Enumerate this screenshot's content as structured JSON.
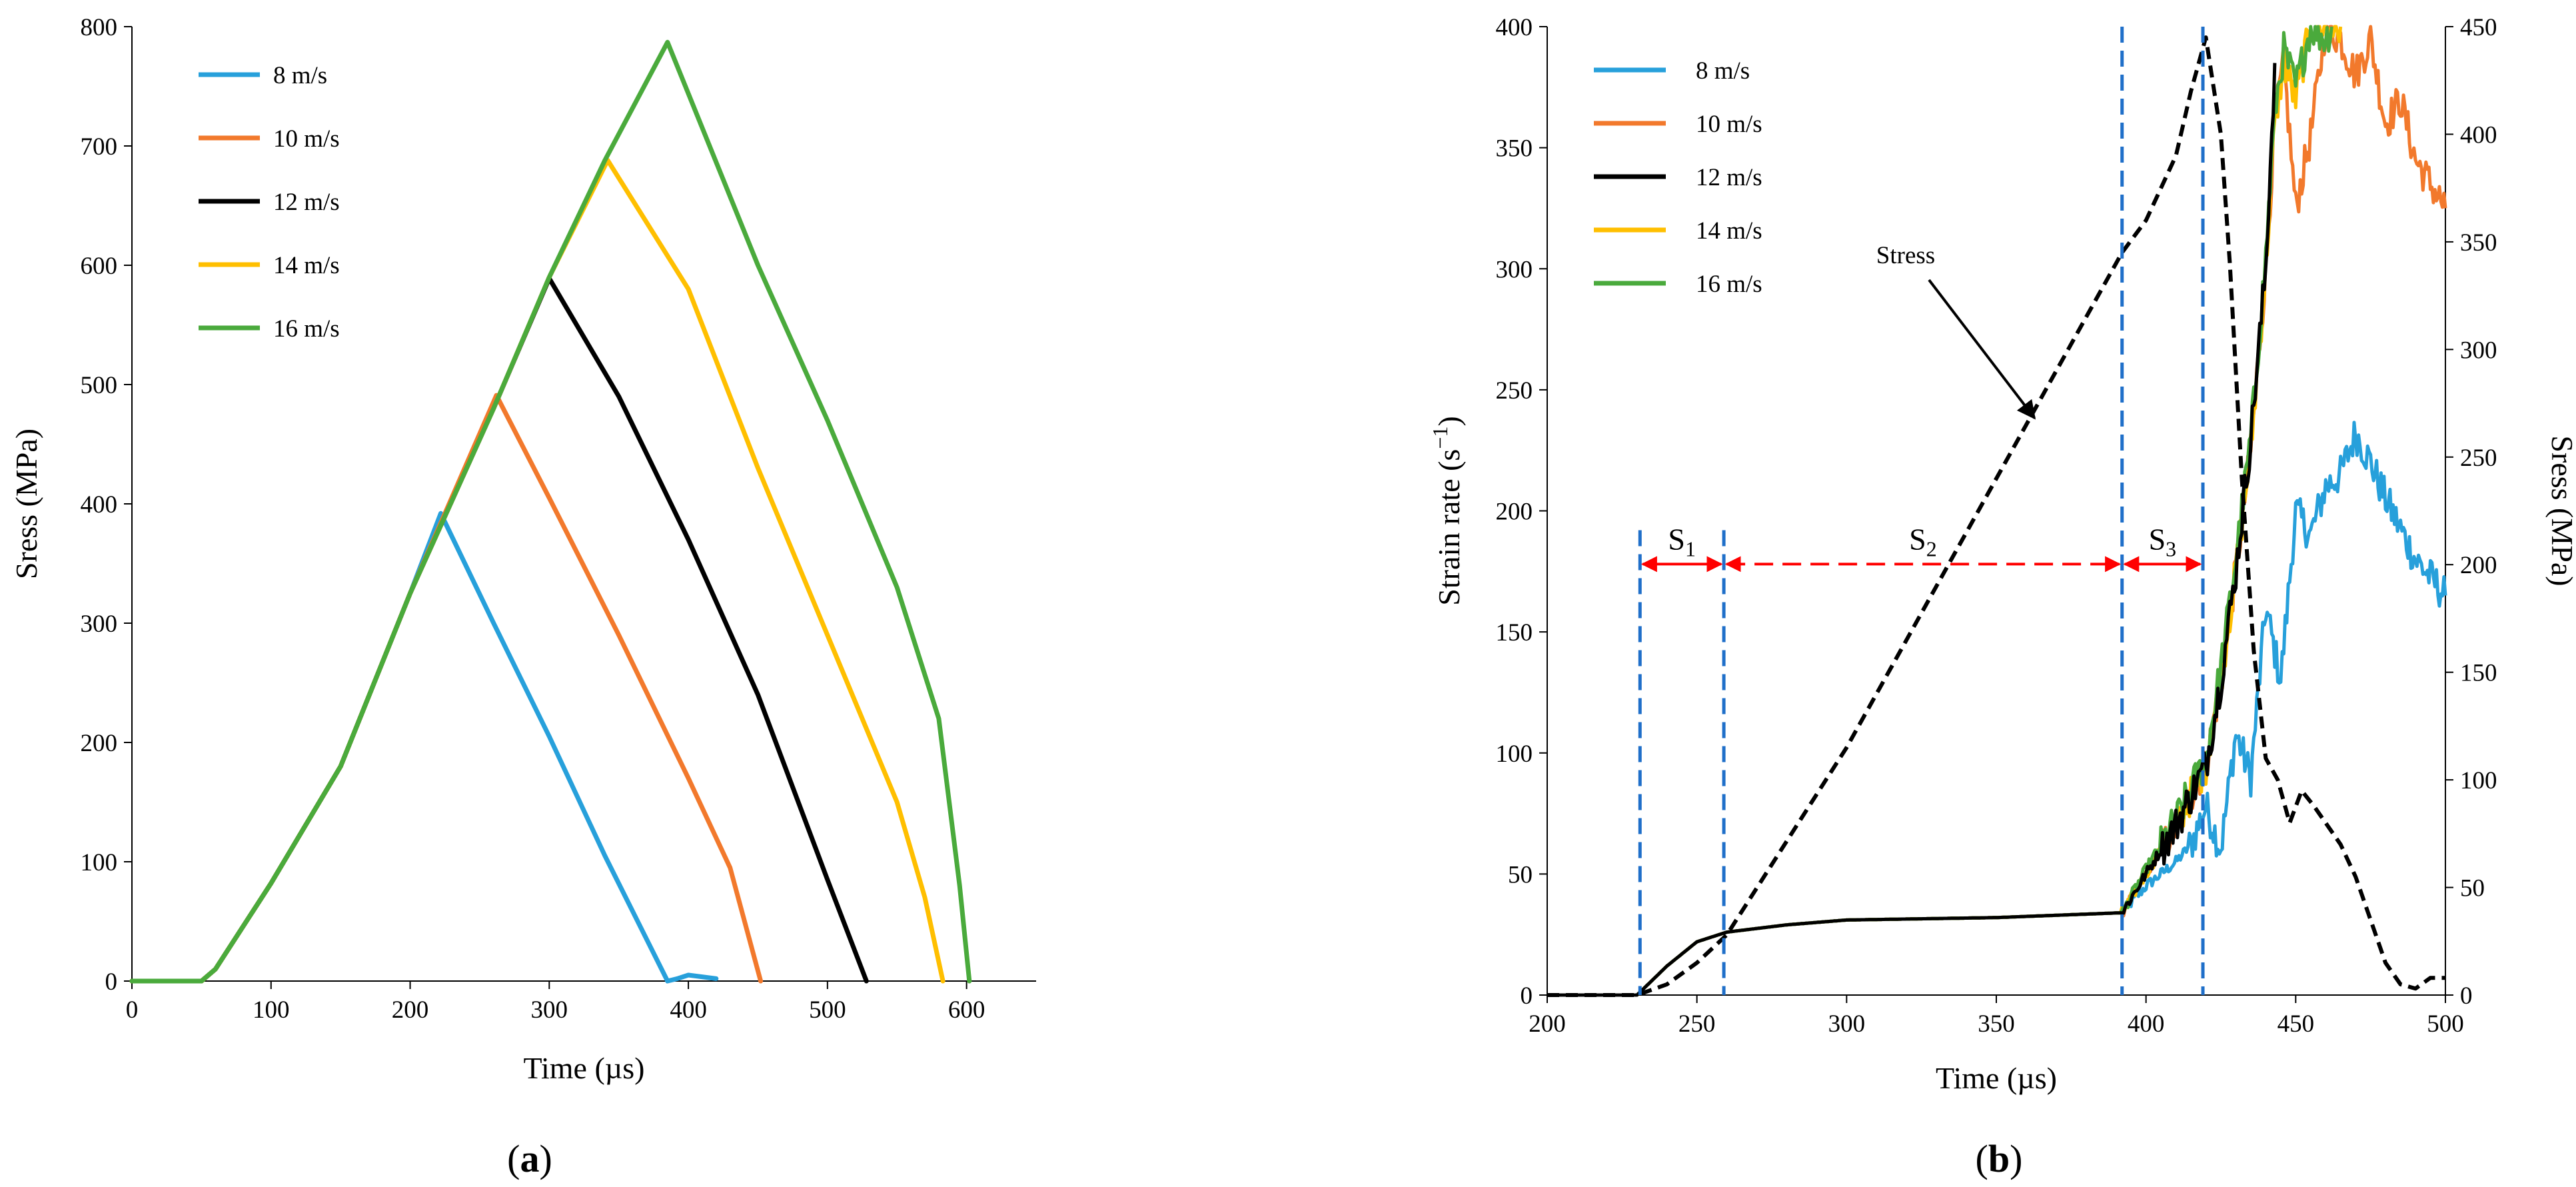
{
  "chart_data": [
    {
      "id": "a",
      "type": "line",
      "panel_label": "a",
      "xlabel": "Time (µs)",
      "ylabel": "Sress (MPa)",
      "xlim": [
        0,
        650
      ],
      "ylim": [
        0,
        800
      ],
      "xticks": [
        "0",
        "100",
        "200",
        "300",
        "400",
        "500",
        "600"
      ],
      "yticks": [
        "0",
        "100",
        "200",
        "300",
        "400",
        "500",
        "600",
        "700",
        "800"
      ],
      "legend_position": "top-left",
      "series": [
        {
          "name": "8 m/s",
          "color": "#27a0db",
          "x": [
            0,
            50,
            60,
            100,
            150,
            200,
            222,
            260,
            300,
            340,
            385,
            392,
            400,
            420
          ],
          "y": [
            0,
            0,
            10,
            82,
            180,
            325,
            392,
            300,
            205,
            105,
            0,
            2,
            5,
            2
          ]
        },
        {
          "name": "10 m/s",
          "color": "#f2792c",
          "x": [
            0,
            50,
            60,
            100,
            150,
            200,
            262,
            300,
            350,
            400,
            430,
            452
          ],
          "y": [
            0,
            0,
            10,
            82,
            180,
            325,
            491,
            405,
            290,
            170,
            95,
            0
          ]
        },
        {
          "name": "12 m/s",
          "color": "#000000",
          "x": [
            0,
            50,
            60,
            100,
            150,
            200,
            260,
            300,
            350,
            400,
            450,
            500,
            528
          ],
          "y": [
            0,
            0,
            10,
            82,
            180,
            325,
            480,
            589,
            490,
            370,
            240,
            85,
            0
          ]
        },
        {
          "name": "14 m/s",
          "color": "#ffbf00",
          "x": [
            0,
            50,
            60,
            100,
            150,
            200,
            260,
            300,
            342,
            400,
            450,
            500,
            550,
            570,
            583
          ],
          "y": [
            0,
            0,
            10,
            82,
            180,
            325,
            480,
            590,
            688,
            580,
            430,
            290,
            150,
            70,
            0
          ]
        },
        {
          "name": "16 m/s",
          "color": "#4aaa3c",
          "x": [
            0,
            50,
            60,
            100,
            150,
            200,
            260,
            300,
            340,
            385,
            450,
            500,
            550,
            580,
            595,
            602
          ],
          "y": [
            0,
            0,
            10,
            82,
            180,
            325,
            480,
            590,
            688,
            787,
            600,
            470,
            330,
            220,
            80,
            0
          ]
        }
      ]
    },
    {
      "id": "b",
      "type": "line",
      "panel_label": "b",
      "xlabel": "Time (µs)",
      "ylabel": "Strain rate (s",
      "ylabel_sup": "−1",
      "ylabel_close": ")",
      "y2label": "Sress (MPa)",
      "xlim": [
        200,
        500
      ],
      "ylim": [
        0,
        400
      ],
      "y2lim": [
        0,
        450
      ],
      "xticks": [
        "200",
        "250",
        "300",
        "350",
        "400",
        "450",
        "500"
      ],
      "yticks": [
        "0",
        "50",
        "100",
        "150",
        "200",
        "250",
        "300",
        "350",
        "400"
      ],
      "y2ticks": [
        "0",
        "50",
        "100",
        "150",
        "200",
        "250",
        "300",
        "350",
        "400",
        "450"
      ],
      "legend_position": "top-left",
      "series": [
        {
          "name": "8 m/s",
          "color": "#27a0db",
          "x": [
            200,
            230,
            240,
            250,
            260,
            280,
            300,
            350,
            392,
            400,
            410,
            415,
            420,
            425,
            430,
            435,
            440,
            445,
            450,
            455,
            460,
            465,
            470,
            475,
            480,
            490,
            500
          ],
          "y": [
            0,
            0,
            12,
            22,
            26,
            29,
            31,
            32,
            34,
            45,
            55,
            62,
            78,
            60,
            108,
            90,
            160,
            130,
            200,
            190,
            210,
            215,
            232,
            220,
            205,
            180,
            165
          ]
        },
        {
          "name": "10 m/s",
          "color": "#f2792c",
          "x": [
            200,
            230,
            240,
            250,
            260,
            280,
            300,
            350,
            392,
            400,
            410,
            420,
            425,
            430,
            435,
            440,
            443,
            446,
            450,
            455,
            460,
            465,
            470,
            475,
            480,
            485,
            490,
            500
          ],
          "y": [
            0,
            0,
            12,
            22,
            26,
            29,
            31,
            32,
            34,
            50,
            70,
            95,
            130,
            175,
            225,
            300,
            360,
            385,
            325,
            355,
            400,
            395,
            380,
            395,
            360,
            370,
            345,
            325
          ]
        },
        {
          "name": "12 m/s",
          "color": "#000000",
          "x": [
            200,
            230,
            240,
            250,
            260,
            280,
            300,
            350,
            392,
            400,
            410,
            420,
            425,
            430,
            435,
            440,
            443
          ],
          "y": [
            0,
            0,
            12,
            22,
            26,
            29,
            31,
            32,
            34,
            50,
            70,
            95,
            130,
            175,
            230,
            300,
            385
          ]
        },
        {
          "name": "14 m/s",
          "color": "#ffbf00",
          "x": [
            200,
            230,
            240,
            250,
            260,
            280,
            300,
            350,
            392,
            400,
            410,
            420,
            425,
            430,
            435,
            440,
            443,
            446,
            450,
            455,
            460,
            465
          ],
          "y": [
            0,
            0,
            12,
            22,
            26,
            29,
            31,
            32,
            34,
            50,
            70,
            95,
            130,
            175,
            225,
            300,
            360,
            385,
            370,
            400,
            400,
            400
          ]
        },
        {
          "name": "16 m/s",
          "color": "#4aaa3c",
          "x": [
            200,
            230,
            240,
            250,
            260,
            280,
            300,
            350,
            392,
            400,
            410,
            420,
            425,
            430,
            435,
            440,
            443,
            446,
            450,
            455,
            460,
            462
          ],
          "y": [
            0,
            0,
            12,
            22,
            26,
            29,
            31,
            32,
            34,
            52,
            72,
            98,
            135,
            180,
            230,
            305,
            365,
            390,
            375,
            400,
            395,
            400
          ]
        }
      ],
      "stress_curve": {
        "name": "Stress",
        "color": "#000000",
        "axis": "right",
        "x": [
          200,
          230,
          240,
          250,
          260,
          300,
          350,
          392,
          400,
          410,
          415,
          420,
          425,
          428,
          432,
          436,
          440,
          444,
          448,
          452,
          456,
          460,
          465,
          470,
          480,
          485,
          490,
          495,
          500
        ],
        "y": [
          0,
          0,
          5,
          15,
          28,
          115,
          240,
          345,
          360,
          390,
          420,
          445,
          400,
          340,
          240,
          160,
          110,
          100,
          80,
          95,
          88,
          80,
          70,
          55,
          15,
          5,
          3,
          8,
          8
        ]
      },
      "annotations": {
        "stress_label": "Stress",
        "stress_arrow_at": [
          365,
          265
        ],
        "vlines": [
          231,
          259,
          392,
          419
        ],
        "segments": [
          {
            "sub": "1",
            "from": 231,
            "to": 259,
            "label": "S"
          },
          {
            "sub": "2",
            "from": 259,
            "to": 392,
            "label": "S"
          },
          {
            "sub": "3",
            "from": 392,
            "to": 419,
            "label": "S"
          }
        ],
        "arrow_level": 178
      }
    }
  ]
}
